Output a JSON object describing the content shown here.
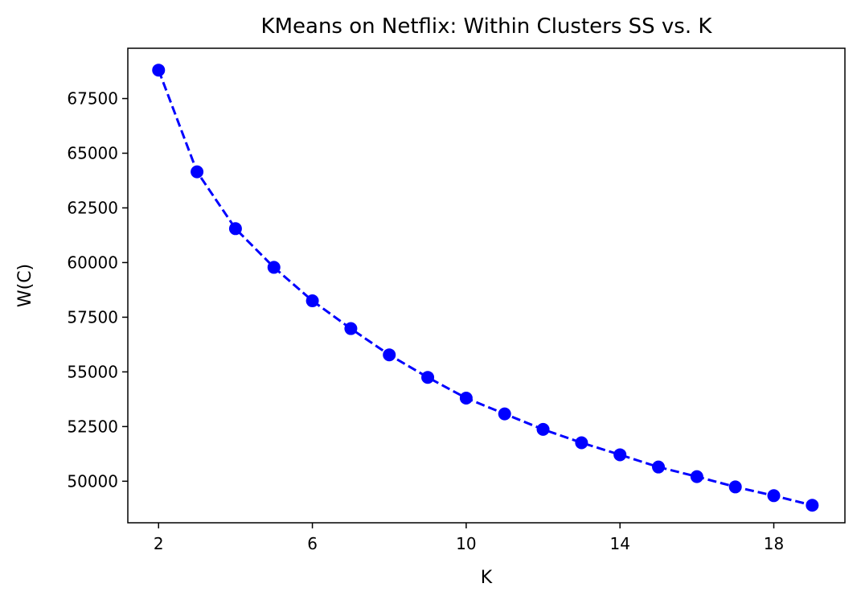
{
  "chart_data": {
    "type": "line",
    "title": "KMeans on Netflix: Within Clusters SS vs. K",
    "xlabel": "K",
    "ylabel": "W(C)",
    "x": [
      2,
      3,
      4,
      5,
      6,
      7,
      8,
      9,
      10,
      11,
      12,
      13,
      14,
      15,
      16,
      17,
      18,
      19
    ],
    "series": [
      {
        "values": [
          68800,
          64150,
          61550,
          59780,
          58250,
          56980,
          55780,
          54750,
          53800,
          53080,
          52370,
          51760,
          51210,
          50650,
          50210,
          49740,
          49340,
          48900
        ],
        "color": "#0000ff",
        "line_style": "dashed",
        "marker": "circle"
      }
    ],
    "xlim": [
      1.2,
      19.85
    ],
    "ylim": [
      48100,
      69800
    ],
    "xticks": [
      2,
      6,
      10,
      14,
      18
    ],
    "yticks": [
      50000,
      52500,
      55000,
      57500,
      60000,
      62500,
      65000,
      67500
    ],
    "grid": false,
    "legend": "none"
  }
}
